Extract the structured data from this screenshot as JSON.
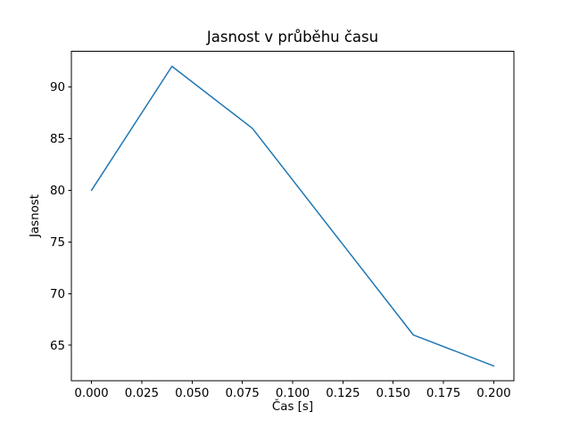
{
  "figure": {
    "background": "#ffffff"
  },
  "chart_data": {
    "type": "line",
    "title": "Jasnost v průběhu času",
    "xlabel": "Čas [s]",
    "ylabel": "Jasnost",
    "series": [
      {
        "name": "jasnost",
        "x": [
          0.0,
          0.04,
          0.08,
          0.12,
          0.16,
          0.2
        ],
        "y": [
          80,
          92,
          86,
          76,
          66,
          63
        ],
        "color": "#1f77b4",
        "linewidth": 1.5,
        "marker": "none"
      }
    ],
    "xlim": [
      -0.01,
      0.21
    ],
    "ylim": [
      61.55,
      93.45
    ],
    "xticks": {
      "values": [
        0.0,
        0.025,
        0.05,
        0.075,
        0.1,
        0.125,
        0.15,
        0.175,
        0.2
      ],
      "labels": [
        "0.000",
        "0.025",
        "0.050",
        "0.075",
        "0.100",
        "0.125",
        "0.150",
        "0.175",
        "0.200"
      ]
    },
    "yticks": {
      "values": [
        65,
        70,
        75,
        80,
        85,
        90
      ],
      "labels": [
        "65",
        "70",
        "75",
        "80",
        "85",
        "90"
      ]
    },
    "grid": false,
    "legend": "none",
    "spine_color": "#000000",
    "text_color": "#000000",
    "tick_length": 3.5
  }
}
